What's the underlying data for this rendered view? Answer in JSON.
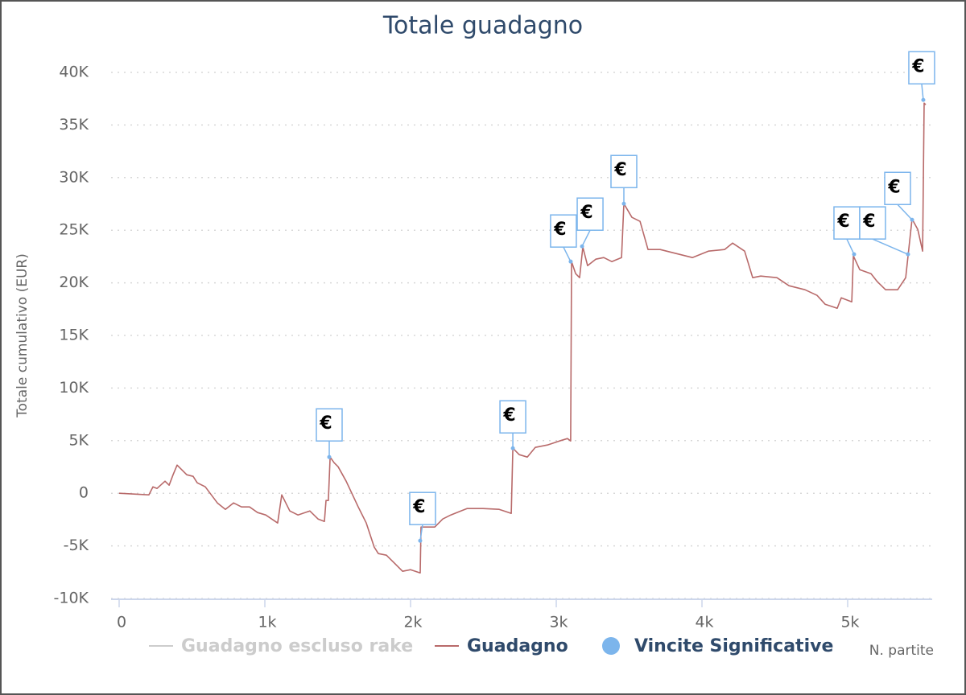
{
  "chart_data": {
    "type": "line",
    "title": "Totale guadagno",
    "xlabel": "N. partite",
    "ylabel": "Totale cumulativo (EUR)",
    "xlim": [
      0,
      5580
    ],
    "ylim": [
      -10000,
      40000
    ],
    "xticks": [
      0,
      {
        "value": 1000,
        "label": "1k"
      },
      {
        "value": 2000,
        "label": "2k"
      },
      {
        "value": 3000,
        "label": "3k"
      },
      {
        "value": 4000,
        "label": "4k"
      },
      {
        "value": 5000,
        "label": "5k"
      }
    ],
    "yticks": [
      {
        "value": -10000,
        "label": "-10K"
      },
      {
        "value": -5000,
        "label": "-5K"
      },
      0,
      {
        "value": 5000,
        "label": "5K"
      },
      {
        "value": 10000,
        "label": "10K"
      },
      {
        "value": 15000,
        "label": "15K"
      },
      {
        "value": 20000,
        "label": "20K"
      },
      {
        "value": 25000,
        "label": "25K"
      },
      {
        "value": 30000,
        "label": "30K"
      },
      {
        "value": 35000,
        "label": "35K"
      },
      {
        "value": 40000,
        "label": "40K"
      }
    ],
    "grid": true,
    "legend": "bottom",
    "series": [
      {
        "name": "Guadagno escluso rake",
        "color": "#cccccc",
        "hidden": true
      },
      {
        "name": "Guadagno",
        "color": "#b86a6a",
        "x": [
          0,
          204,
          232,
          260,
          315,
          343,
          370,
          398,
          464,
          508,
          536,
          591,
          674,
          729,
          785,
          840,
          895,
          950,
          1006,
          1088,
          1116,
          1171,
          1227,
          1309,
          1365,
          1409,
          1420,
          1436,
          1448,
          1475,
          1503,
          1558,
          1641,
          1696,
          1751,
          1779,
          1834,
          1890,
          1945,
          2000,
          2066,
          2072,
          2110,
          2166,
          2221,
          2276,
          2387,
          2497,
          2608,
          2691,
          2702,
          2746,
          2801,
          2856,
          2939,
          3022,
          3077,
          3099,
          3105,
          3133,
          3160,
          3182,
          3215,
          3271,
          3326,
          3381,
          3448,
          3464,
          3519,
          3575,
          3630,
          3713,
          3823,
          3934,
          4044,
          4155,
          4210,
          4293,
          4348,
          4403,
          4514,
          4597,
          4707,
          4790,
          4845,
          4928,
          4956,
          5028,
          5039,
          5083,
          5160,
          5204,
          5260,
          5343,
          5398,
          5414,
          5442,
          5481,
          5514,
          5525,
          5536
        ],
        "values": [
          0,
          -153,
          612,
          459,
          1147,
          765,
          1758,
          2676,
          1758,
          1605,
          994,
          612,
          -917,
          -1529,
          -917,
          -1300,
          -1300,
          -1835,
          -2064,
          -2828,
          -153,
          -1682,
          -2064,
          -1682,
          -2446,
          -2676,
          -688,
          -688,
          3440,
          2905,
          2523,
          1147,
          -1300,
          -2828,
          -5122,
          -5734,
          -5887,
          -6651,
          -7416,
          -7263,
          -7569,
          -3211,
          -3211,
          -3211,
          -2446,
          -2064,
          -1453,
          -1453,
          -1529,
          -1911,
          4281,
          3670,
          3440,
          4358,
          4587,
          4969,
          5199,
          4969,
          22018,
          20871,
          20489,
          23394,
          21635,
          22247,
          22400,
          22018,
          22400,
          27522,
          26222,
          25840,
          23164,
          23164,
          22782,
          22400,
          23011,
          23164,
          23776,
          23011,
          20489,
          20642,
          20489,
          19724,
          19342,
          18807,
          17966,
          17584,
          18577,
          18195,
          22553,
          21253,
          20871,
          20106,
          19342,
          19342,
          20489,
          22553,
          26069,
          25076,
          23011,
          37078,
          36925
        ]
      },
      {
        "name": "Vincite Significative",
        "color": "#7cb5ec",
        "type": "scatter",
        "marker_label": "€",
        "x": [
          1442,
          2066,
          2702,
          3099,
          3177,
          3464,
          5044,
          5414,
          5442,
          5519
        ],
        "values": [
          3440,
          -4510,
          4280,
          22020,
          23470,
          27520,
          22710,
          22710,
          25990,
          37380
        ]
      }
    ]
  }
}
